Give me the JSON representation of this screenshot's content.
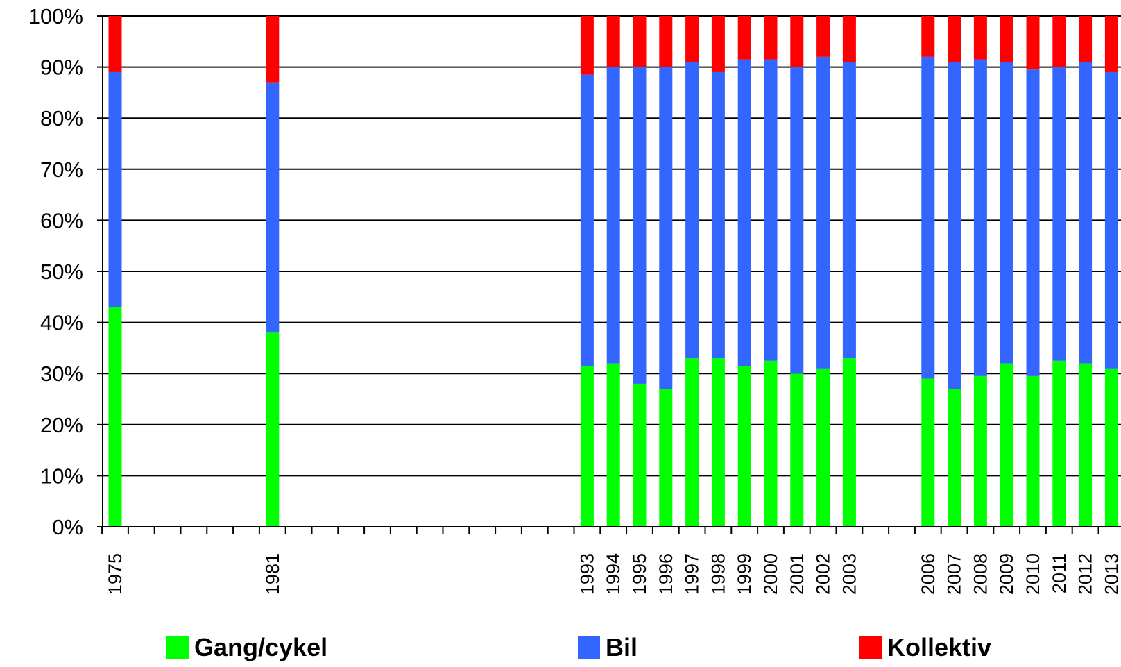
{
  "chart_data": {
    "type": "bar",
    "stacked": true,
    "percent": true,
    "ylim": [
      0,
      100
    ],
    "yticks": [
      "0%",
      "10%",
      "20%",
      "30%",
      "40%",
      "50%",
      "60%",
      "70%",
      "80%",
      "90%",
      "100%"
    ],
    "xlim": [
      1975,
      2014
    ],
    "categories": [
      "1975",
      "1981",
      "1993",
      "1994",
      "1995",
      "1996",
      "1997",
      "1998",
      "1999",
      "2000",
      "2001",
      "2002",
      "2003",
      "2006",
      "2007",
      "2008",
      "2009",
      "2010",
      "2011",
      "2012",
      "2013"
    ],
    "series": [
      {
        "name": "Gang/cykel",
        "color": "#00ff00",
        "values": [
          43,
          38,
          31.5,
          32,
          28,
          27,
          33,
          33,
          31.5,
          32.5,
          30,
          31,
          33,
          29,
          27,
          29.5,
          32,
          29.5,
          32.5,
          32,
          31
        ]
      },
      {
        "name": "Bil",
        "color": "#3366ff",
        "values": [
          46,
          49,
          57,
          58,
          62,
          63,
          58,
          56,
          60,
          59,
          60,
          61,
          58,
          63,
          64,
          62,
          59,
          60,
          57.5,
          59,
          58
        ]
      },
      {
        "name": "Kollektiv",
        "color": "#ff0000",
        "values": [
          11,
          13,
          11.5,
          10,
          10,
          10,
          9,
          11,
          8.5,
          8.5,
          10,
          8,
          9,
          8,
          9,
          8.5,
          9,
          10.5,
          10,
          9,
          11
        ]
      }
    ],
    "grid": true,
    "legend_position": "bottom"
  }
}
